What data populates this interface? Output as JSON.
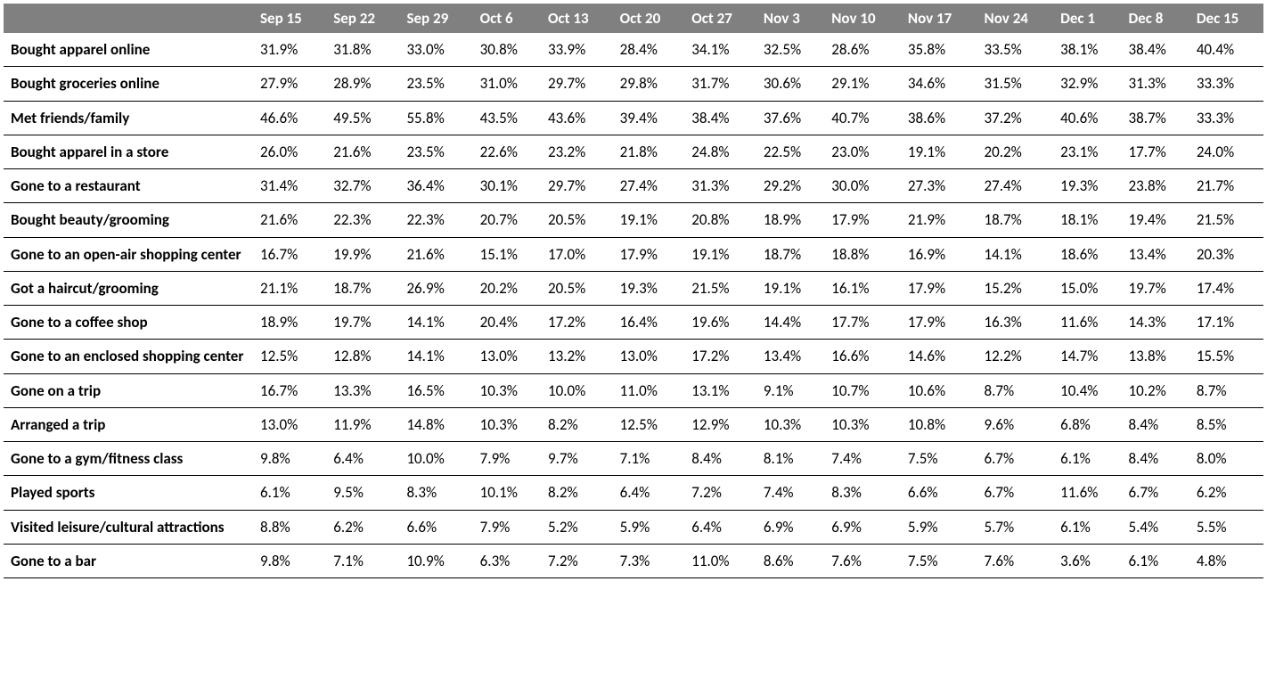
{
  "table": {
    "columns": [
      "",
      "Sep 15",
      "Sep 22",
      "Sep 29",
      "Oct 6",
      "Oct 13",
      "Oct 20",
      "Oct 27",
      "Nov 3",
      "Nov 10",
      "Nov 17",
      "Nov 24",
      "Dec 1",
      "Dec 8",
      "Dec 15"
    ],
    "rows": [
      {
        "label": "Bought apparel online",
        "values": [
          "31.9%",
          "31.8%",
          "33.0%",
          "30.8%",
          "33.9%",
          "28.4%",
          "34.1%",
          "32.5%",
          "28.6%",
          "35.8%",
          "33.5%",
          "38.1%",
          "38.4%",
          "40.4%"
        ]
      },
      {
        "label": "Bought groceries online",
        "values": [
          "27.9%",
          "28.9%",
          "23.5%",
          "31.0%",
          "29.7%",
          "29.8%",
          "31.7%",
          "30.6%",
          "29.1%",
          "34.6%",
          "31.5%",
          "32.9%",
          "31.3%",
          "33.3%"
        ]
      },
      {
        "label": "Met friends/family",
        "values": [
          "46.6%",
          "49.5%",
          "55.8%",
          "43.5%",
          "43.6%",
          "39.4%",
          "38.4%",
          "37.6%",
          "40.7%",
          "38.6%",
          "37.2%",
          "40.6%",
          "38.7%",
          "33.3%"
        ]
      },
      {
        "label": "Bought apparel in a store",
        "values": [
          "26.0%",
          "21.6%",
          "23.5%",
          "22.6%",
          "23.2%",
          "21.8%",
          "24.8%",
          "22.5%",
          "23.0%",
          "19.1%",
          "20.2%",
          "23.1%",
          "17.7%",
          "24.0%"
        ]
      },
      {
        "label": "Gone to a restaurant",
        "values": [
          "31.4%",
          "32.7%",
          "36.4%",
          "30.1%",
          "29.7%",
          "27.4%",
          "31.3%",
          "29.2%",
          "30.0%",
          "27.3%",
          "27.4%",
          "19.3%",
          "23.8%",
          "21.7%"
        ]
      },
      {
        "label": "Bought beauty/grooming",
        "values": [
          "21.6%",
          "22.3%",
          "22.3%",
          "20.7%",
          "20.5%",
          "19.1%",
          "20.8%",
          "18.9%",
          "17.9%",
          "21.9%",
          "18.7%",
          "18.1%",
          "19.4%",
          "21.5%"
        ]
      },
      {
        "label": "Gone to an open-air shopping center",
        "values": [
          "16.7%",
          "19.9%",
          "21.6%",
          "15.1%",
          "17.0%",
          "17.9%",
          "19.1%",
          "18.7%",
          "18.8%",
          "16.9%",
          "14.1%",
          "18.6%",
          "13.4%",
          "20.3%"
        ]
      },
      {
        "label": "Got a haircut/grooming",
        "values": [
          "21.1%",
          "18.7%",
          "26.9%",
          "20.2%",
          "20.5%",
          "19.3%",
          "21.5%",
          "19.1%",
          "16.1%",
          "17.9%",
          "15.2%",
          "15.0%",
          "19.7%",
          "17.4%"
        ]
      },
      {
        "label": "Gone to a coffee shop",
        "values": [
          "18.9%",
          "19.7%",
          "14.1%",
          "20.4%",
          "17.2%",
          "16.4%",
          "19.6%",
          "14.4%",
          "17.7%",
          "17.9%",
          "16.3%",
          "11.6%",
          "14.3%",
          "17.1%"
        ]
      },
      {
        "label": "Gone to an enclosed shopping center",
        "values": [
          "12.5%",
          "12.8%",
          "14.1%",
          "13.0%",
          "13.2%",
          "13.0%",
          "17.2%",
          "13.4%",
          "16.6%",
          "14.6%",
          "12.2%",
          "14.7%",
          "13.8%",
          "15.5%"
        ]
      },
      {
        "label": "Gone on a trip",
        "values": [
          "16.7%",
          "13.3%",
          "16.5%",
          "10.3%",
          "10.0%",
          "11.0%",
          "13.1%",
          "9.1%",
          "10.7%",
          "10.6%",
          "8.7%",
          "10.4%",
          "10.2%",
          "8.7%"
        ]
      },
      {
        "label": "Arranged a trip",
        "values": [
          "13.0%",
          "11.9%",
          "14.8%",
          "10.3%",
          "8.2%",
          "12.5%",
          "12.9%",
          "10.3%",
          "10.3%",
          "10.8%",
          "9.6%",
          "6.8%",
          "8.4%",
          "8.5%"
        ]
      },
      {
        "label": "Gone to a gym/fitness class",
        "values": [
          "9.8%",
          "6.4%",
          "10.0%",
          "7.9%",
          "9.7%",
          "7.1%",
          "8.4%",
          "8.1%",
          "7.4%",
          "7.5%",
          "6.7%",
          "6.1%",
          "8.4%",
          "8.0%"
        ]
      },
      {
        "label": "Played sports",
        "values": [
          "6.1%",
          "9.5%",
          "8.3%",
          "10.1%",
          "8.2%",
          "6.4%",
          "7.2%",
          "7.4%",
          "8.3%",
          "6.6%",
          "6.7%",
          "11.6%",
          "6.7%",
          "6.2%"
        ]
      },
      {
        "label": "Visited leisure/cultural attractions",
        "values": [
          "8.8%",
          "6.2%",
          "6.6%",
          "7.9%",
          "5.2%",
          "5.9%",
          "6.4%",
          "6.9%",
          "6.9%",
          "5.9%",
          "5.7%",
          "6.1%",
          "5.4%",
          "5.5%"
        ]
      },
      {
        "label": "Gone to a bar",
        "values": [
          "9.8%",
          "7.1%",
          "10.9%",
          "6.3%",
          "7.2%",
          "7.3%",
          "11.0%",
          "8.6%",
          "7.6%",
          "7.5%",
          "7.6%",
          "3.6%",
          "6.1%",
          "4.8%"
        ]
      }
    ],
    "header_bg": "#808080",
    "header_text_color": "#ffffff",
    "border_color": "#000000",
    "font_family": "Calibri, Arial, sans-serif",
    "font_size": 17,
    "first_col_width": 280
  }
}
